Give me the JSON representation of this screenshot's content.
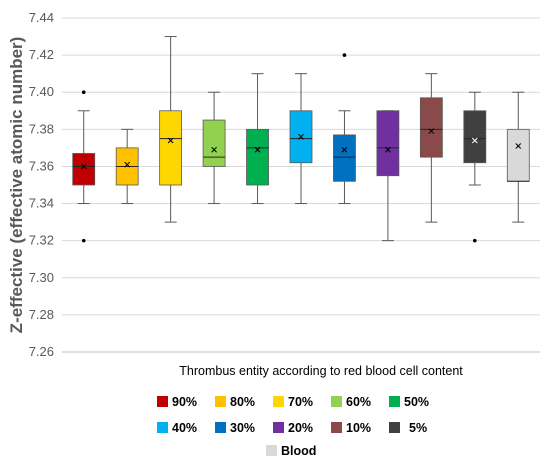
{
  "chart_data": {
    "type": "box",
    "xlabel": "Thrombus entity according to red blood cell content",
    "ylabel": "Z-effective (effective atomic number)",
    "ylim": [
      7.26,
      7.44
    ],
    "yticks": [
      7.26,
      7.28,
      7.3,
      7.32,
      7.34,
      7.36,
      7.38,
      7.4,
      7.42,
      7.44
    ],
    "ytick_labels": [
      "7.26",
      "7.28",
      "7.30",
      "7.32",
      "7.34",
      "7.36",
      "7.38",
      "7.40",
      "7.42",
      "7.44"
    ],
    "grid": true,
    "legend_position": "bottom",
    "series": [
      {
        "name": "90%",
        "color": "#C00000",
        "whisker_low": 7.34,
        "q1": 7.35,
        "median": 7.36,
        "q3": 7.367,
        "whisker_high": 7.39,
        "mean": 7.36,
        "outliers": [
          7.4,
          7.32
        ]
      },
      {
        "name": "80%",
        "color": "#FFC000",
        "whisker_low": 7.34,
        "q1": 7.35,
        "median": 7.36,
        "q3": 7.37,
        "whisker_high": 7.38,
        "mean": 7.361,
        "outliers": []
      },
      {
        "name": "70%",
        "color": "#FFD700",
        "whisker_low": 7.33,
        "q1": 7.35,
        "median": 7.375,
        "q3": 7.39,
        "whisker_high": 7.43,
        "mean": 7.374,
        "outliers": []
      },
      {
        "name": "60%",
        "color": "#92D050",
        "whisker_low": 7.34,
        "q1": 7.36,
        "median": 7.365,
        "q3": 7.385,
        "whisker_high": 7.4,
        "mean": 7.369,
        "outliers": []
      },
      {
        "name": "50%",
        "color": "#00B050",
        "whisker_low": 7.34,
        "q1": 7.35,
        "median": 7.37,
        "q3": 7.38,
        "whisker_high": 7.41,
        "mean": 7.369,
        "outliers": []
      },
      {
        "name": "40%",
        "color": "#00B0F0",
        "whisker_low": 7.34,
        "q1": 7.362,
        "median": 7.375,
        "q3": 7.39,
        "whisker_high": 7.41,
        "mean": 7.376,
        "outliers": []
      },
      {
        "name": "30%",
        "color": "#0070C0",
        "whisker_low": 7.34,
        "q1": 7.352,
        "median": 7.365,
        "q3": 7.377,
        "whisker_high": 7.39,
        "mean": 7.369,
        "outliers": [
          7.42
        ]
      },
      {
        "name": "20%",
        "color": "#7030A0",
        "whisker_low": 7.32,
        "q1": 7.355,
        "median": 7.37,
        "q3": 7.39,
        "whisker_high": 7.39,
        "mean": 7.369,
        "outliers": []
      },
      {
        "name": "10%",
        "color": "#8B4A4A",
        "whisker_low": 7.33,
        "q1": 7.365,
        "median": 7.38,
        "q3": 7.397,
        "whisker_high": 7.41,
        "mean": 7.379,
        "outliers": []
      },
      {
        "name": "5%",
        "color": "#404040",
        "whisker_low": 7.35,
        "q1": 7.362,
        "median": 7.375,
        "q3": 7.39,
        "whisker_high": 7.4,
        "mean": 7.374,
        "outliers": [
          7.32
        ]
      },
      {
        "name": "Blood",
        "color": "#D9D9D9",
        "whisker_low": 7.33,
        "q1": 7.352,
        "median": 7.352,
        "q3": 7.38,
        "whisker_high": 7.4,
        "mean": 7.371,
        "outliers": []
      }
    ],
    "legend_rows": [
      [
        "90%",
        "80%",
        "70%",
        "60%",
        "50%"
      ],
      [
        "40%",
        "30%",
        "20%",
        "10%",
        "5%"
      ],
      [
        "Blood"
      ]
    ]
  }
}
